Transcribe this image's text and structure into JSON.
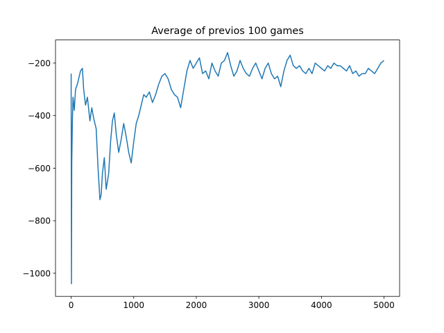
{
  "chart_data": {
    "type": "line",
    "title": "Average of previos 100 games",
    "x": [
      0,
      5,
      10,
      20,
      30,
      50,
      70,
      100,
      130,
      150,
      180,
      200,
      230,
      260,
      300,
      330,
      360,
      400,
      430,
      460,
      480,
      500,
      530,
      560,
      600,
      630,
      660,
      690,
      720,
      760,
      800,
      840,
      880,
      920,
      960,
      1000,
      1040,
      1080,
      1120,
      1160,
      1200,
      1250,
      1300,
      1350,
      1400,
      1450,
      1500,
      1550,
      1600,
      1650,
      1700,
      1750,
      1800,
      1850,
      1900,
      1950,
      2000,
      2050,
      2100,
      2150,
      2200,
      2250,
      2300,
      2350,
      2400,
      2450,
      2500,
      2550,
      2600,
      2650,
      2700,
      2750,
      2800,
      2850,
      2900,
      2950,
      3000,
      3050,
      3100,
      3150,
      3200,
      3250,
      3300,
      3350,
      3400,
      3450,
      3500,
      3550,
      3600,
      3650,
      3700,
      3750,
      3800,
      3850,
      3900,
      3950,
      4000,
      4050,
      4100,
      4150,
      4200,
      4250,
      4300,
      4350,
      4400,
      4450,
      4500,
      4550,
      4600,
      4650,
      4700,
      4750,
      4800,
      4850,
      4900,
      4950,
      4999
    ],
    "series": [
      {
        "color": "#1f77b4",
        "values": [
          -240,
          -1040,
          -580,
          -420,
          -330,
          -380,
          -300,
          -280,
          -250,
          -230,
          -220,
          -300,
          -360,
          -330,
          -420,
          -370,
          -410,
          -450,
          -600,
          -720,
          -700,
          -620,
          -560,
          -680,
          -620,
          -500,
          -420,
          -390,
          -470,
          -540,
          -490,
          -430,
          -480,
          -540,
          -580,
          -500,
          -430,
          -400,
          -360,
          -320,
          -330,
          -310,
          -350,
          -320,
          -280,
          -250,
          -240,
          -260,
          -300,
          -320,
          -330,
          -370,
          -300,
          -230,
          -190,
          -220,
          -200,
          -180,
          -240,
          -230,
          -260,
          -200,
          -230,
          -250,
          -200,
          -190,
          -160,
          -210,
          -250,
          -230,
          -190,
          -220,
          -240,
          -250,
          -220,
          -200,
          -230,
          -260,
          -220,
          -200,
          -240,
          -260,
          -250,
          -290,
          -230,
          -190,
          -170,
          -210,
          -220,
          -210,
          -230,
          -240,
          -220,
          -240,
          -200,
          -210,
          -220,
          -230,
          -210,
          -220,
          -200,
          -210,
          -210,
          -220,
          -230,
          -210,
          -240,
          -230,
          -250,
          -240,
          -240,
          -220,
          -230,
          -240,
          -220,
          -200,
          -190
        ]
      }
    ],
    "xlim": [
      -250,
      5249
    ],
    "ylim": [
      -1088,
      -112
    ],
    "xticks": [
      0,
      1000,
      2000,
      3000,
      4000,
      5000
    ],
    "yticks": [
      {
        "value": -1000,
        "label": "−1000"
      },
      {
        "value": -800,
        "label": "−800"
      },
      {
        "value": -600,
        "label": "−600"
      },
      {
        "value": -400,
        "label": "−400"
      },
      {
        "value": -200,
        "label": "−200"
      }
    ]
  }
}
